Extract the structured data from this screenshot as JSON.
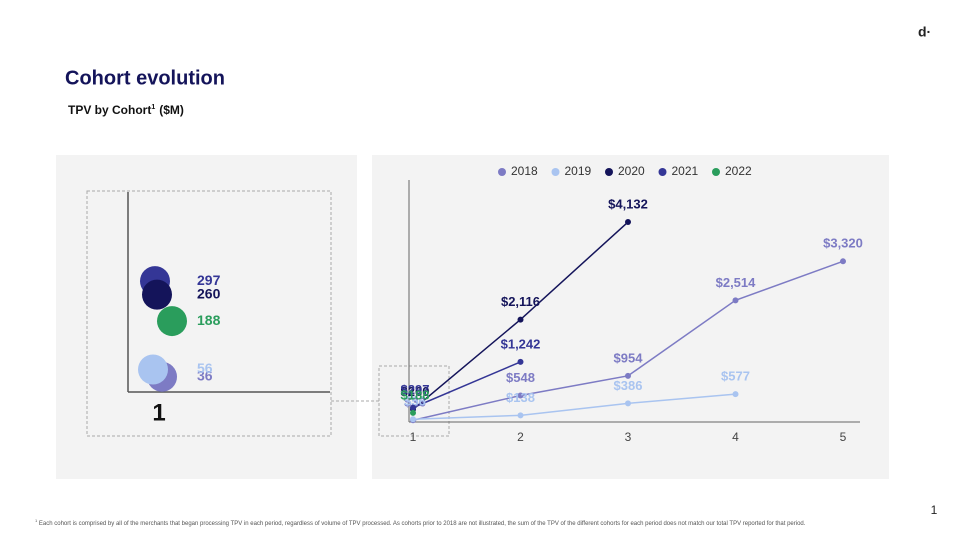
{
  "logo": "d·",
  "page_number": "1",
  "footnote": {
    "marker": "1",
    "text": "Each cohort is comprised by all of the merchants that began processing TPV in each period, regardless of volume of TPV processed. As cohorts prior to 2018 are not illustrated, the sum of the TPV of the different cohorts for each period does not match our total TPV reported for that period."
  },
  "chart_data": {
    "type": "line",
    "title": "Cohort evolution",
    "subtitle": "TPV by Cohort",
    "subtitle_note": "1",
    "subtitle_unit": "($M)",
    "x": [
      1,
      2,
      3,
      4,
      5
    ],
    "xlim": [
      1,
      5
    ],
    "xticks": [
      1,
      2,
      3,
      4,
      5
    ],
    "ylim": [
      0,
      5000
    ],
    "legend": "top",
    "series": [
      {
        "name": "2018",
        "color": "#7d7bc4",
        "values": [
          36,
          548,
          954,
          2514,
          3320
        ],
        "value_labels": [
          "$36",
          "$548",
          "$954",
          "$2,514",
          "$3,320"
        ]
      },
      {
        "name": "2019",
        "color": "#a9c4f0",
        "values": [
          56,
          138,
          386,
          577,
          null
        ],
        "value_labels": [
          "$56",
          "$138",
          "$386",
          "$577",
          null
        ]
      },
      {
        "name": "2020",
        "color": "#14145a",
        "values": [
          260,
          2116,
          4132,
          null,
          null
        ],
        "value_labels": [
          "$260",
          "$2,116",
          "$4,132",
          null,
          null
        ]
      },
      {
        "name": "2021",
        "color": "#343696",
        "values": [
          297,
          1242,
          null,
          null,
          null
        ],
        "value_labels": [
          "$297",
          "$1,242",
          null,
          null,
          null
        ]
      },
      {
        "name": "2022",
        "color": "#2a9d5c",
        "values": [
          188,
          null,
          null,
          null,
          null
        ],
        "value_labels": [
          "$188",
          null,
          null,
          null,
          null
        ]
      }
    ],
    "inset": {
      "ylim": [
        0,
        540
      ],
      "xticks": [
        1
      ]
    }
  }
}
